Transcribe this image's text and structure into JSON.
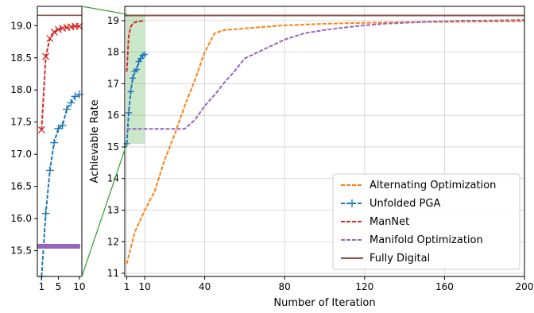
{
  "chart_data": [
    {
      "type": "line",
      "panel": "inset-zoom",
      "xlim": [
        0,
        10.6
      ],
      "ylim": [
        15.1,
        19.3
      ],
      "xticks": [
        1,
        5,
        10
      ],
      "yticks": [
        15.5,
        16.0,
        16.5,
        17.0,
        17.5,
        18.0,
        18.5,
        19.0
      ],
      "ytick_labels": [
        "15.5",
        "16.0",
        "16.5",
        "17.0",
        "17.5",
        "18.0",
        "18.5",
        "19.0"
      ],
      "grid": false,
      "series": [
        {
          "name": "Unfolded PGA",
          "color": "#1f77b4",
          "x": [
            1,
            2,
            3,
            4,
            5,
            6,
            7,
            8,
            9,
            10
          ],
          "y": [
            15.1,
            16.08,
            16.75,
            17.18,
            17.4,
            17.45,
            17.7,
            17.8,
            17.9,
            17.93
          ]
        },
        {
          "name": "ManNet",
          "color": "#d62728",
          "x": [
            1,
            2,
            3,
            4,
            5,
            6,
            7,
            8,
            9,
            10
          ],
          "y": [
            17.38,
            18.52,
            18.8,
            18.9,
            18.94,
            18.96,
            18.97,
            18.98,
            18.99,
            18.99
          ]
        },
        {
          "name": "Manifold Optimization",
          "color": "#9467bd",
          "x": [
            1,
            2,
            3,
            4,
            5,
            6,
            7,
            8,
            9,
            10
          ],
          "y": [
            15.57,
            15.57,
            15.57,
            15.57,
            15.57,
            15.57,
            15.57,
            15.57,
            15.57,
            15.57
          ]
        },
        {
          "name": "Fully Digital",
          "color": "#8c564b",
          "x": [
            0,
            10.6
          ],
          "y": [
            19.16,
            19.16
          ]
        }
      ]
    },
    {
      "type": "line",
      "panel": "main",
      "xlabel": "Number of Iteration",
      "ylabel": "Achievable Rate",
      "xlim": [
        0,
        200
      ],
      "ylim": [
        10.9,
        19.45
      ],
      "xticks": [
        1,
        10,
        40,
        80,
        120,
        160,
        200
      ],
      "yticks": [
        11,
        12,
        13,
        14,
        15,
        16,
        17,
        18,
        19
      ],
      "grid": true,
      "legend_position": "lower-right",
      "zoom_box": {
        "x": [
          1,
          10
        ],
        "y": [
          15.1,
          19.2
        ]
      },
      "series": [
        {
          "name": "Alternating Optimization",
          "color": "#ff7f0e",
          "style": "dashed",
          "x": [
            1,
            5,
            10,
            15,
            20,
            25,
            30,
            35,
            40,
            45,
            50,
            60,
            70,
            80,
            100,
            120,
            140,
            160,
            180,
            200
          ],
          "y": [
            11.3,
            12.3,
            13.0,
            13.6,
            14.6,
            15.4,
            16.3,
            17.1,
            18.0,
            18.6,
            18.7,
            18.75,
            18.8,
            18.85,
            18.9,
            18.93,
            18.95,
            18.96,
            18.97,
            18.98
          ]
        },
        {
          "name": "Unfolded PGA",
          "color": "#1f77b4",
          "style": "dashed",
          "marker": "+",
          "x": [
            1,
            2,
            3,
            4,
            5,
            6,
            7,
            8,
            9,
            10
          ],
          "y": [
            15.1,
            16.08,
            16.75,
            17.18,
            17.4,
            17.45,
            17.7,
            17.8,
            17.9,
            17.93
          ]
        },
        {
          "name": "ManNet",
          "color": "#d62728",
          "style": "dashed",
          "x": [
            1,
            2,
            3,
            4,
            5,
            6,
            7,
            8,
            9,
            10
          ],
          "y": [
            17.38,
            18.52,
            18.8,
            18.9,
            18.94,
            18.96,
            18.97,
            18.98,
            18.99,
            18.99
          ]
        },
        {
          "name": "Manifold Optimization",
          "color": "#9467bd",
          "style": "dashed",
          "x": [
            1,
            10,
            20,
            30,
            35,
            40,
            45,
            50,
            55,
            60,
            70,
            80,
            90,
            100,
            110,
            120,
            130,
            140,
            150,
            160,
            170,
            180,
            190,
            200
          ],
          "y": [
            15.57,
            15.57,
            15.57,
            15.57,
            15.85,
            16.3,
            16.65,
            17.05,
            17.4,
            17.8,
            18.1,
            18.4,
            18.6,
            18.7,
            18.78,
            18.85,
            18.9,
            18.93,
            18.96,
            18.98,
            19.0,
            19.0,
            19.01,
            19.02
          ]
        },
        {
          "name": "Fully Digital",
          "color": "#8c564b",
          "style": "solid",
          "x": [
            0,
            200
          ],
          "y": [
            19.16,
            19.16
          ]
        }
      ]
    }
  ]
}
